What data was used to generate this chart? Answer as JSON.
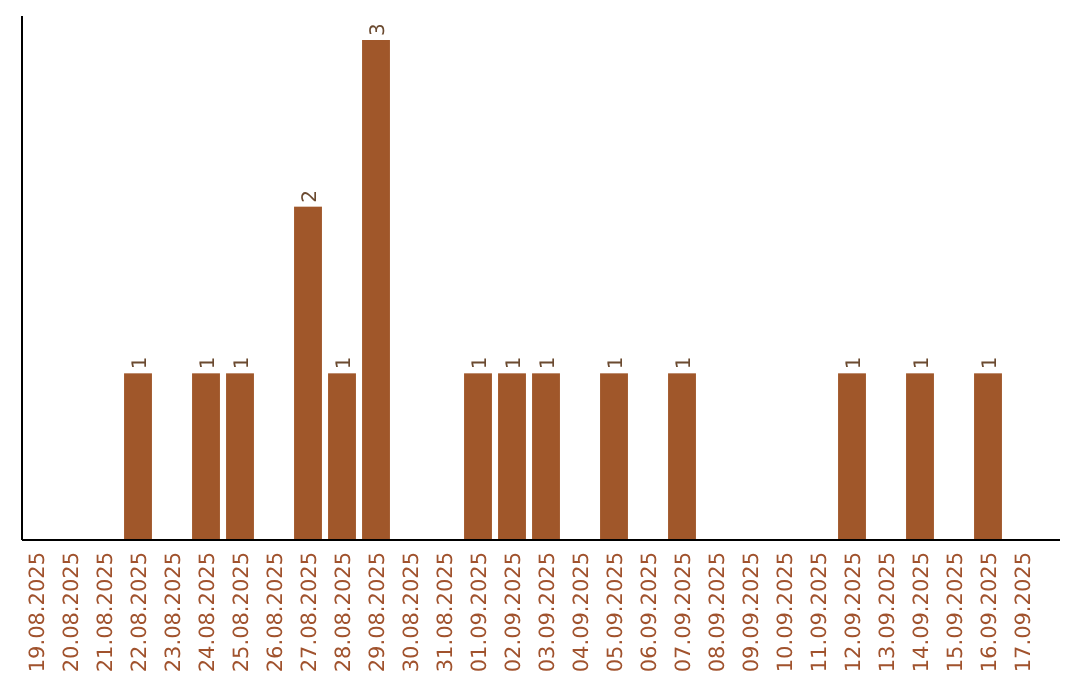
{
  "chart_data": {
    "type": "bar",
    "categories": [
      "19.08.2025",
      "20.08.2025",
      "21.08.2025",
      "22.08.2025",
      "23.08.2025",
      "24.08.2025",
      "25.08.2025",
      "26.08.2025",
      "27.08.2025",
      "28.08.2025",
      "29.08.2025",
      "30.08.2025",
      "31.08.2025",
      "01.09.2025",
      "02.09.2025",
      "03.09.2025",
      "04.09.2025",
      "05.09.2025",
      "06.09.2025",
      "07.09.2025",
      "08.09.2025",
      "09.09.2025",
      "10.09.2025",
      "11.09.2025",
      "12.09.2025",
      "13.09.2025",
      "14.09.2025",
      "15.09.2025",
      "16.09.2025",
      "17.09.2025"
    ],
    "values": [
      0,
      0,
      0,
      1,
      0,
      1,
      1,
      0,
      2,
      1,
      3,
      0,
      0,
      1,
      1,
      1,
      0,
      1,
      0,
      1,
      0,
      0,
      0,
      0,
      1,
      0,
      1,
      0,
      1,
      0
    ],
    "value_labels": [
      null,
      null,
      null,
      "1",
      null,
      "1",
      "1",
      null,
      "2",
      "1",
      "3",
      null,
      null,
      "1",
      "1",
      "1",
      null,
      "1",
      null,
      "1",
      null,
      null,
      null,
      null,
      "1",
      null,
      "1",
      null,
      "1",
      null
    ],
    "color": "#a0572a",
    "ylim": [
      0,
      3
    ],
    "tick_labels": "x"
  }
}
